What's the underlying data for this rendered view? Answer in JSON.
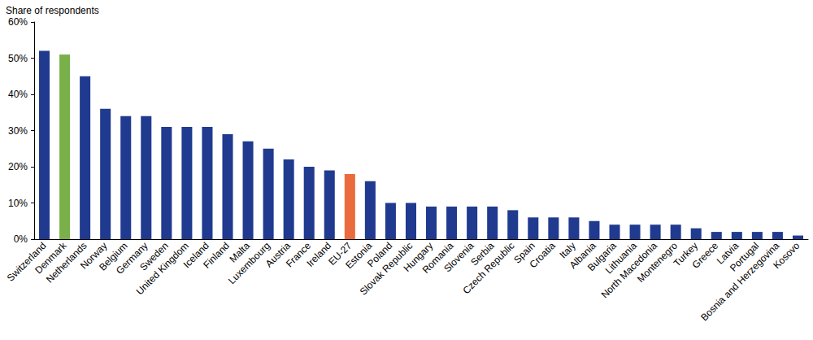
{
  "chart_data": {
    "type": "bar",
    "y_label": "Share of respondents",
    "categories": [
      "Switzerland",
      "Denmark",
      "Netherlands",
      "Norway",
      "Belgium",
      "Germany",
      "Sweden",
      "United Kingdom",
      "Iceland",
      "Finland",
      "Malta",
      "Luxembourg",
      "Austria",
      "France",
      "Ireland",
      "EU-27",
      "Estonia",
      "Poland",
      "Slovak Republic",
      "Hungary",
      "Romania",
      "Slovenia",
      "Serbia",
      "Czech Republic",
      "Spain",
      "Croatia",
      "Italy",
      "Albania",
      "Bulgaria",
      "Lithuania",
      "North Macedonia",
      "Montenegro",
      "Turkey",
      "Greece",
      "Latvia",
      "Portugal",
      "Bosnia and Herzegovina",
      "Kosovo"
    ],
    "values": [
      52,
      51,
      45,
      36,
      34,
      34,
      31,
      31,
      31,
      29,
      27,
      25,
      22,
      20,
      19,
      18,
      16,
      10,
      10,
      9,
      9,
      9,
      9,
      8,
      6,
      6,
      6,
      5,
      4,
      4,
      4,
      4,
      3,
      2,
      2,
      2,
      2,
      1
    ],
    "colors": [
      "#1f3a8f",
      "#7ab04a",
      "#1f3a8f",
      "#1f3a8f",
      "#1f3a8f",
      "#1f3a8f",
      "#1f3a8f",
      "#1f3a8f",
      "#1f3a8f",
      "#1f3a8f",
      "#1f3a8f",
      "#1f3a8f",
      "#1f3a8f",
      "#1f3a8f",
      "#1f3a8f",
      "#ea6b3d",
      "#1f3a8f",
      "#1f3a8f",
      "#1f3a8f",
      "#1f3a8f",
      "#1f3a8f",
      "#1f3a8f",
      "#1f3a8f",
      "#1f3a8f",
      "#1f3a8f",
      "#1f3a8f",
      "#1f3a8f",
      "#1f3a8f",
      "#1f3a8f",
      "#1f3a8f",
      "#1f3a8f",
      "#1f3a8f",
      "#1f3a8f",
      "#1f3a8f",
      "#1f3a8f",
      "#1f3a8f",
      "#1f3a8f",
      "#1f3a8f"
    ],
    "ylim": [
      0,
      60
    ],
    "yticks": [
      {
        "value": 0,
        "label": "0%"
      },
      {
        "value": 10,
        "label": "10%"
      },
      {
        "value": 20,
        "label": "20%"
      },
      {
        "value": 30,
        "label": "30%"
      },
      {
        "value": 40,
        "label": "40%"
      },
      {
        "value": 50,
        "label": "50%"
      },
      {
        "value": 60,
        "label": "60%"
      }
    ],
    "grid": false
  }
}
